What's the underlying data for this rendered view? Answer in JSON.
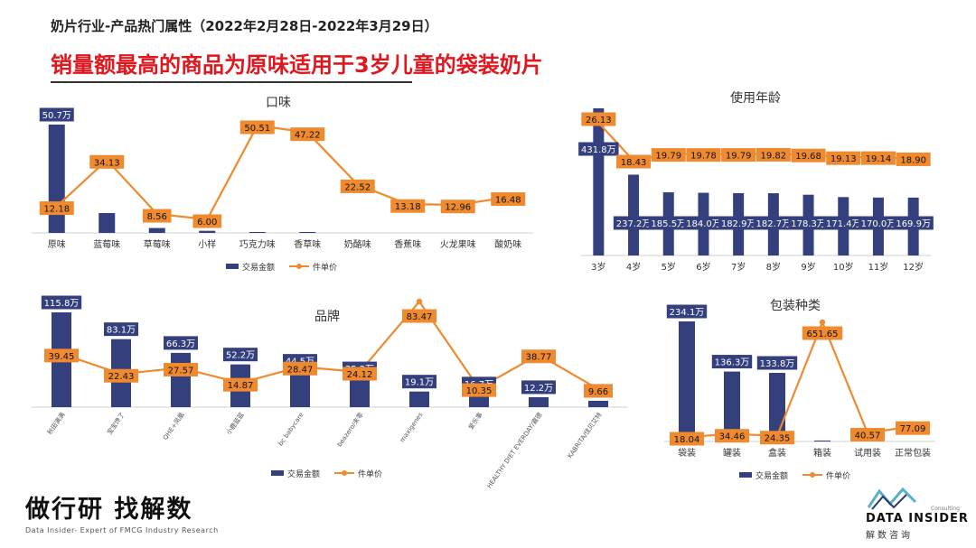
{
  "header": {
    "title": "奶片行业-产品热门属性（2022年2月28日-2022年3月29日）",
    "headline": "销量额最高的商品为原味适用于3岁儿童的袋装奶片"
  },
  "legend": {
    "bar": "交易金额",
    "line": "件单价"
  },
  "colors": {
    "bar": "#34407e",
    "line": "#ef8a2f",
    "headline": "#e0171e"
  },
  "chart_data": [
    {
      "id": "flavor",
      "type": "bar",
      "title": "口味",
      "categories": [
        "原味",
        "蓝莓味",
        "草莓味",
        "小样",
        "巧克力味",
        "香草味",
        "奶酪味",
        "香蕉味",
        "火龙果味",
        "酸奶味"
      ],
      "series": [
        {
          "name": "交易金额",
          "type": "bar",
          "values": [
            50.7,
            9.3,
            2.3,
            1.0,
            0.3,
            0.3,
            0,
            0,
            0,
            0
          ],
          "labels": [
            "50.7万",
            "",
            "",
            "",
            "",
            "",
            "",
            "",
            "",
            ""
          ]
        },
        {
          "name": "件单价",
          "type": "line",
          "values": [
            12.18,
            34.13,
            8.56,
            6.0,
            50.51,
            47.22,
            22.52,
            13.18,
            12.96,
            16.48
          ],
          "labels": [
            "12.18",
            "34.13",
            "8.56",
            "6.00",
            "50.51",
            "47.22",
            "22.52",
            "13.18",
            "12.96",
            "16.48"
          ]
        }
      ],
      "legend": "bottom"
    },
    {
      "id": "age",
      "type": "bar",
      "title": "使用年龄",
      "categories": [
        "3岁",
        "4岁",
        "5岁",
        "6岁",
        "7岁",
        "8岁",
        "9岁",
        "10岁",
        "11岁",
        "12岁"
      ],
      "series": [
        {
          "name": "交易金额",
          "type": "bar",
          "values": [
            431.8,
            237.2,
            185.5,
            184.0,
            182.9,
            182.7,
            178.3,
            171.4,
            170.0,
            169.9
          ],
          "labels": [
            "431.8万",
            "237.2万",
            "185.5万",
            "184.0万",
            "182.9万",
            "182.7万",
            "178.3万",
            "171.4万",
            "170.0万",
            "169.9万"
          ]
        },
        {
          "name": "件单价",
          "type": "line",
          "values": [
            26.13,
            18.43,
            19.79,
            19.78,
            19.79,
            19.82,
            19.68,
            19.13,
            19.14,
            18.9
          ],
          "labels": [
            "26.13",
            "18.43",
            "19.79",
            "19.78",
            "19.79",
            "19.82",
            "19.68",
            "19.13",
            "19.14",
            "18.90"
          ]
        }
      ]
    },
    {
      "id": "brand",
      "type": "bar",
      "title": "品牌",
      "categories": [
        "秋田满满",
        "宝宝馋了",
        "QHE+凤凰",
        "小鹿蓝蓝",
        "bc babycare",
        "beazero/未零",
        "maxigenes",
        "爱乐事",
        "HEALTHY DIET EVERDAY/嘉德",
        "KABRITA/佳贝艾特"
      ],
      "series": [
        {
          "name": "交易金额",
          "type": "bar",
          "values": [
            115.8,
            83.1,
            66.3,
            52.2,
            44.5,
            35.2,
            19.1,
            16.7,
            12.2,
            7.8
          ],
          "labels": [
            "115.8万",
            "83.1万",
            "66.3万",
            "52.2万",
            "44.5万",
            "35.2万",
            "19.1万",
            "16.7万",
            "12.2万",
            "7.8万"
          ]
        },
        {
          "name": "件单价",
          "type": "line",
          "values": [
            39.45,
            22.43,
            27.57,
            14.87,
            28.47,
            24.12,
            83.47,
            10.35,
            38.77,
            9.66
          ],
          "labels": [
            "39.45",
            "22.43",
            "27.57",
            "14.87",
            "28.47",
            "24.12",
            "83.47",
            "10.35",
            "38.77",
            "9.66"
          ]
        }
      ],
      "legend": "bottom"
    },
    {
      "id": "package",
      "type": "bar",
      "title": "包装种类",
      "categories": [
        "袋装",
        "罐装",
        "盒装",
        "箱装",
        "试用装",
        "正常包装"
      ],
      "series": [
        {
          "name": "交易金额",
          "type": "bar",
          "values": [
            234.1,
            136.3,
            133.8,
            1.5,
            0,
            0
          ],
          "labels": [
            "234.1万",
            "136.3万",
            "133.8万",
            "",
            "",
            ""
          ]
        },
        {
          "name": "件单价",
          "type": "line",
          "values": [
            18.04,
            34.46,
            24.35,
            651.65,
            40.57,
            77.09
          ],
          "labels": [
            "18.04",
            "34.46",
            "24.35",
            "651.65",
            "40.57",
            "77.09"
          ]
        }
      ],
      "legend": "bottom"
    }
  ],
  "footer": {
    "slogan": "做行研 找解数",
    "tagline": "Data Insider- Expert of FMCG Industry Research",
    "logo_name": "DATA INSIDER",
    "logo_sub": "解数咨询",
    "logo_consult": "Consulting"
  }
}
